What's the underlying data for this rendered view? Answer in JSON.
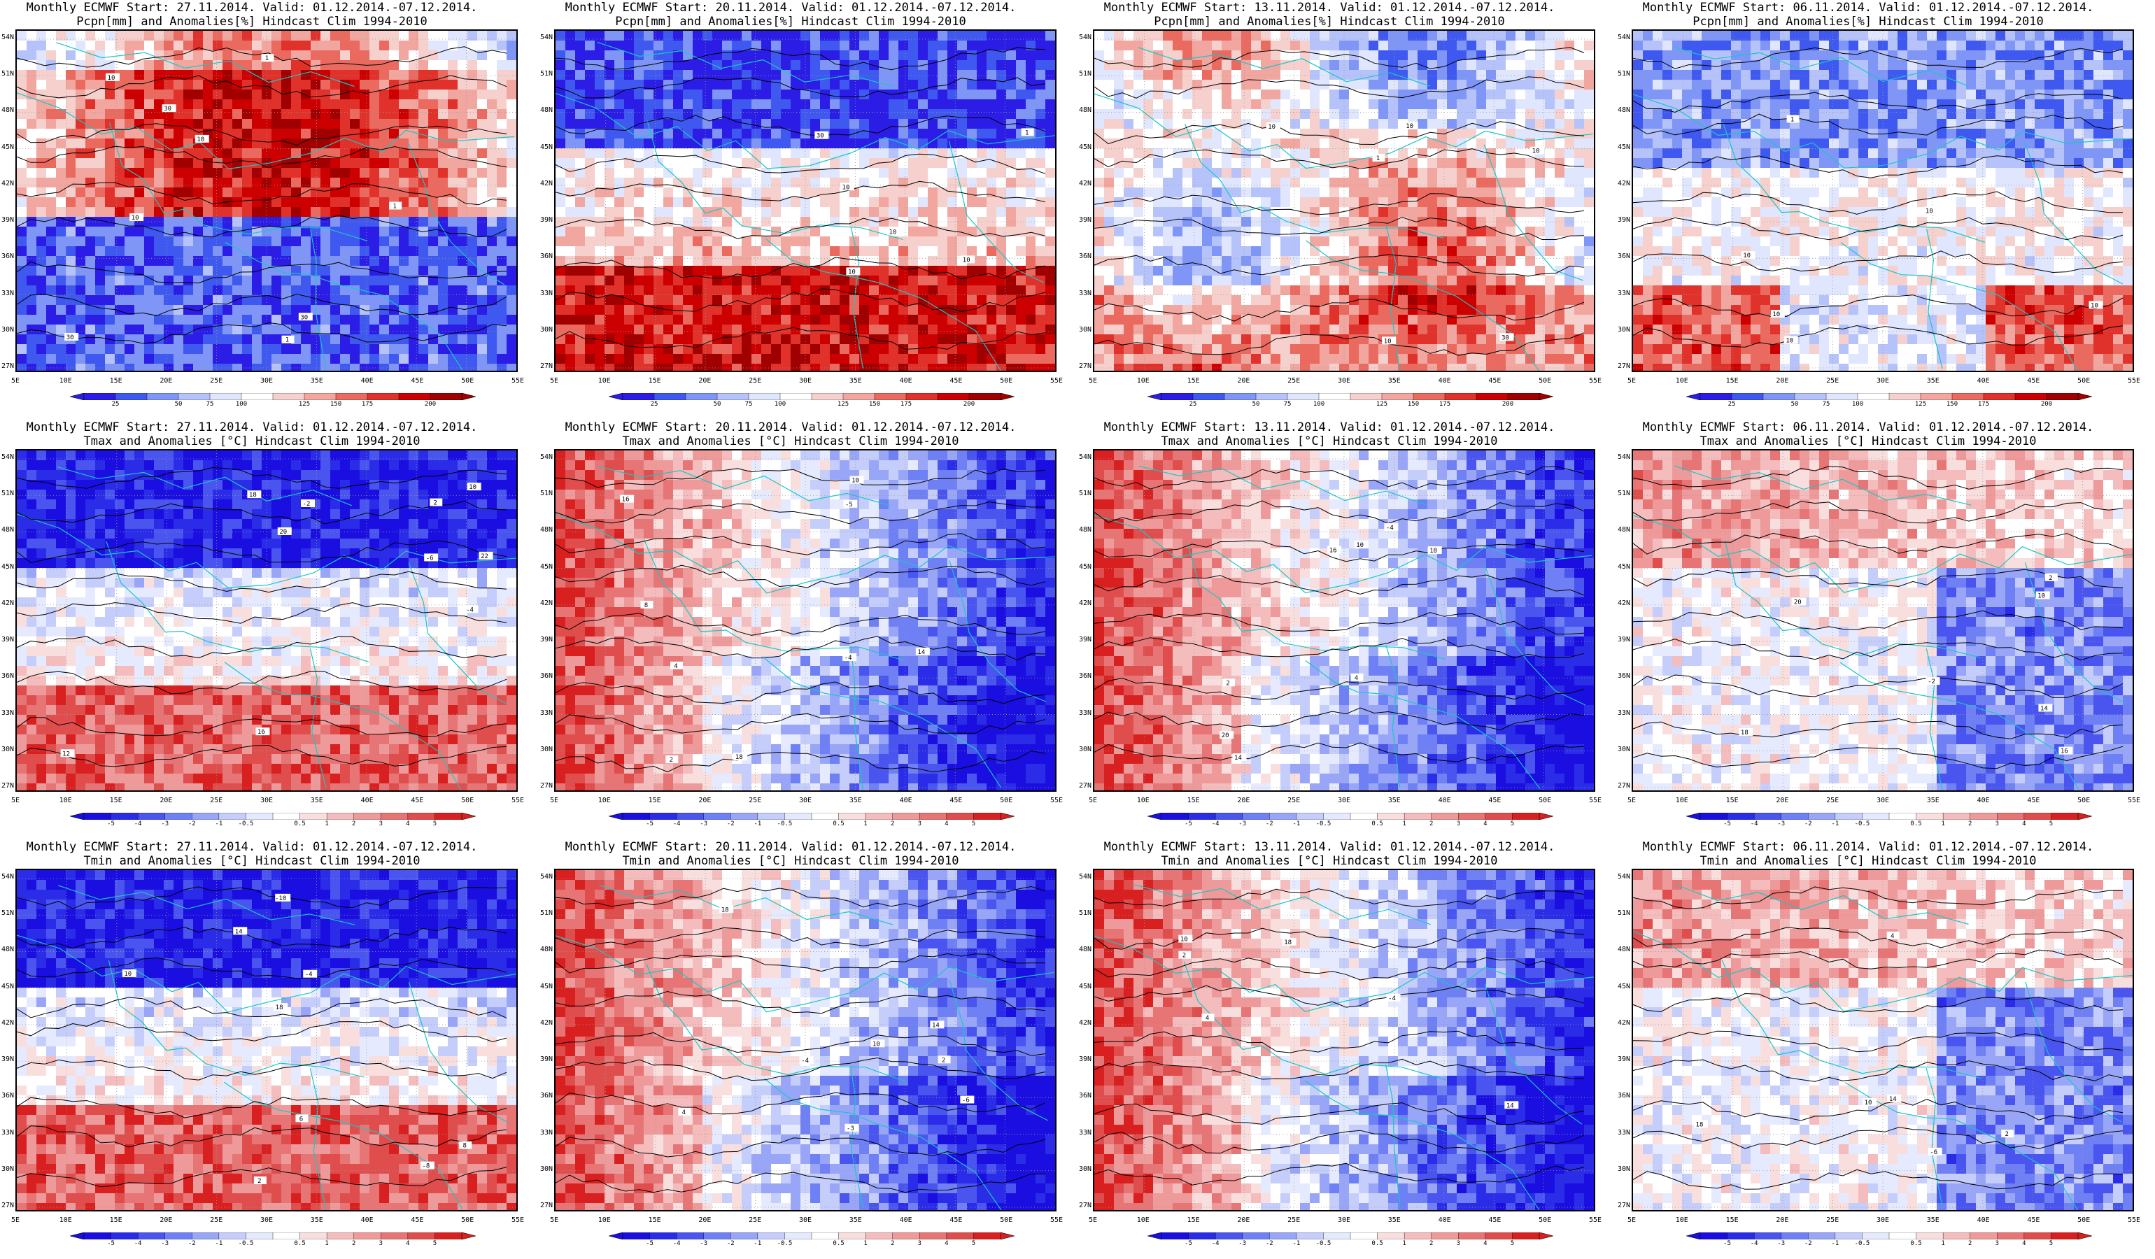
{
  "figure": {
    "title_prefix": "Monthly ECMWF",
    "valid_period": "01.12.2014.-07.12.2014.",
    "climatology": "Hindcast Clim 1994-2010"
  },
  "runs": [
    {
      "start": "27.11.2014."
    },
    {
      "start": "20.11.2014."
    },
    {
      "start": "13.11.2014."
    },
    {
      "start": "06.11.2014."
    }
  ],
  "variables": [
    {
      "name": "Pcpn[mm] and Anomalies[%]",
      "colorbar_ticks": [
        "25",
        "50",
        "75",
        "100",
        "125",
        "150",
        "175",
        "200"
      ],
      "colorbar_colors": [
        "#2b1de6",
        "#3f59f0",
        "#7f96f7",
        "#b6c3fb",
        "#dfe6fd",
        "#ffffff",
        "#f6d0cc",
        "#f2a6a0",
        "#ea6a60",
        "#e0312b",
        "#cc0000",
        "#a00000"
      ],
      "panels": [
        {
          "title2": "Pcpn[mm] and Anomalies[%] Hindcast Clim 1994-2010",
          "contour_labels": [
            "30",
            "30",
            "10",
            "30",
            "10",
            "10",
            "1",
            "1",
            "1"
          ],
          "dominant": "red-north-blue-south"
        },
        {
          "title2": "Pcpn[mm] and Anomalies[%] Hindcast Clim 1994-2010",
          "contour_labels": [
            "10",
            "10",
            "30",
            "10",
            "1",
            "10"
          ],
          "dominant": "blue-north-red-south"
        },
        {
          "title2": "Pcpn[mm] and Anomalies[%] Hindcast Clim 1994-2010",
          "contour_labels": [
            "10",
            "10",
            "30",
            "10",
            "10",
            "1"
          ],
          "dominant": "mixed"
        },
        {
          "title2": "Pcpn[mm] and Anomalies[%] Hindcast Clim 1994-2010",
          "contour_labels": [
            "10",
            "10",
            "10",
            "10",
            "1",
            "10"
          ],
          "dominant": "blue-north"
        }
      ]
    },
    {
      "name": "Tmax and Anomalies [°C]",
      "colorbar_ticks": [
        "-5",
        "-4",
        "-3",
        "-2",
        "-1",
        "-0.5",
        "0.5",
        "1",
        "2",
        "3",
        "4",
        "5"
      ],
      "colorbar_colors": [
        "#1a0fe0",
        "#2a2ce8",
        "#4a55ef",
        "#6f80f4",
        "#99a6f8",
        "#c5cdfb",
        "#e6eafe",
        "#ffffff",
        "#f9dede",
        "#f4bcbc",
        "#ee9a9a",
        "#e77575",
        "#e04d4d",
        "#d92020"
      ],
      "panels": [
        {
          "title2": "Tmax and Anomalies [°C] Hindcast Clim 1994-2010",
          "contour_labels": [
            "-2",
            "-4",
            "-6",
            "2",
            "10",
            "12",
            "16",
            "18",
            "20",
            "22"
          ],
          "dominant": "blue-north-red-south"
        },
        {
          "title2": "Tmax and Anomalies [°C] Hindcast Clim 1994-2010",
          "contour_labels": [
            "-4",
            "-5",
            "2",
            "4",
            "10",
            "14",
            "16",
            "18",
            "8"
          ],
          "dominant": "red-west-blue-east"
        },
        {
          "title2": "Tmax and Anomalies [°C] Hindcast Clim 1994-2010",
          "contour_labels": [
            "-4",
            "2",
            "4",
            "10",
            "14",
            "16",
            "18",
            "20"
          ],
          "dominant": "red-west-blue-east"
        },
        {
          "title2": "Tmax and Anomalies [°C] Hindcast Clim 1994-2010",
          "contour_labels": [
            "-2",
            "2",
            "10",
            "14",
            "16",
            "18",
            "20"
          ],
          "dominant": "red-north"
        }
      ]
    },
    {
      "name": "Tmin and Anomalies [°C]",
      "colorbar_ticks": [
        "-5",
        "-4",
        "-3",
        "-2",
        "-1",
        "-0.5",
        "0.5",
        "1",
        "2",
        "3",
        "4",
        "5"
      ],
      "colorbar_colors": [
        "#1a0fe0",
        "#2a2ce8",
        "#4a55ef",
        "#6f80f4",
        "#99a6f8",
        "#c5cdfb",
        "#e6eafe",
        "#ffffff",
        "#f9dede",
        "#f4bcbc",
        "#ee9a9a",
        "#e77575",
        "#e04d4d",
        "#d92020"
      ],
      "panels": [
        {
          "title2": "Tmin and Anomalies [°C] Hindcast Clim 1994-2010",
          "contour_labels": [
            "-4",
            "-8",
            "-10",
            "2",
            "6",
            "8",
            "10",
            "14",
            "18"
          ],
          "dominant": "blue-north-red-south"
        },
        {
          "title2": "Tmin and Anomalies [°C] Hindcast Clim 1994-2010",
          "contour_labels": [
            "-3",
            "-4",
            "-6",
            "2",
            "4",
            "10",
            "14",
            "18"
          ],
          "dominant": "red-west-blue-east"
        },
        {
          "title2": "Tmin and Anomalies [°C] Hindcast Clim 1994-2010",
          "contour_labels": [
            "-4",
            "2",
            "4",
            "10",
            "14",
            "18"
          ],
          "dominant": "red-west-blue-east"
        },
        {
          "title2": "Tmin and Anomalies [°C] Hindcast Clim 1994-2010",
          "contour_labels": [
            "-6",
            "2",
            "4",
            "10",
            "14",
            "18"
          ],
          "dominant": "red-north"
        }
      ]
    }
  ],
  "axes": {
    "lat_labels": [
      "54N",
      "51N",
      "48N",
      "45N",
      "42N",
      "39N",
      "36N",
      "33N",
      "30N",
      "27N"
    ],
    "lon_labels": [
      "5E",
      "10E",
      "15E",
      "20E",
      "25E",
      "30E",
      "35E",
      "40E",
      "45E",
      "50E",
      "55E"
    ]
  },
  "colors": {
    "contour": "#000000",
    "coastline": "#17c7c7",
    "grid": "#9a9a9a"
  }
}
